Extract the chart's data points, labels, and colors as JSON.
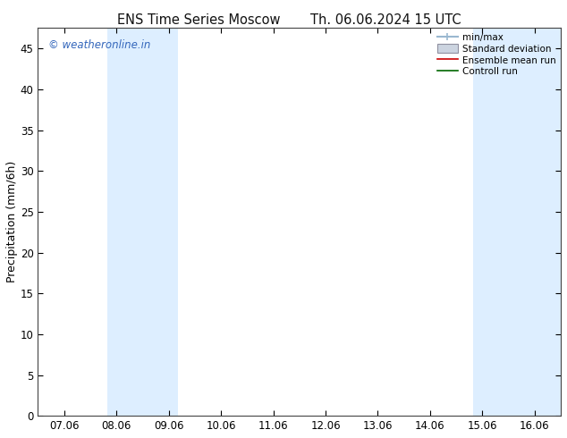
{
  "title1": "ENS Time Series Moscow",
  "title2": "Th. 06.06.2024 15 UTC",
  "ylabel": "Precipitation (mm/6h)",
  "watermark": "© weatheronline.in",
  "watermark_color": "#3366bb",
  "x_tick_labels": [
    "07.06",
    "08.06",
    "09.06",
    "10.06",
    "11.06",
    "12.06",
    "13.06",
    "14.06",
    "15.06",
    "16.06"
  ],
  "x_tick_positions": [
    0,
    1,
    2,
    3,
    4,
    5,
    6,
    7,
    8,
    9
  ],
  "ylim": [
    0,
    47.5
  ],
  "xlim": [
    -0.5,
    9.5
  ],
  "yticks": [
    0,
    5,
    10,
    15,
    20,
    25,
    30,
    35,
    40,
    45
  ],
  "background_color": "#ffffff",
  "plot_bg_color": "#ffffff",
  "shaded_bands": [
    {
      "x_start": 0.83,
      "x_end": 1.5,
      "color": "#ddeeff"
    },
    {
      "x_start": 1.5,
      "x_end": 2.17,
      "color": "#ddeeff"
    },
    {
      "x_start": 7.83,
      "x_end": 8.5,
      "color": "#ddeeff"
    },
    {
      "x_start": 8.5,
      "x_end": 9.17,
      "color": "#ddeeff"
    },
    {
      "x_start": 9.17,
      "x_end": 9.5,
      "color": "#ddeeff"
    }
  ],
  "legend_labels": [
    "min/max",
    "Standard deviation",
    "Ensemble mean run",
    "Controll run"
  ],
  "legend_colors_line": [
    "#9ab8d0",
    "#b8b8c8",
    "#cc0000",
    "#006600"
  ],
  "title_fontsize": 10.5,
  "axis_fontsize": 9,
  "tick_fontsize": 8.5
}
